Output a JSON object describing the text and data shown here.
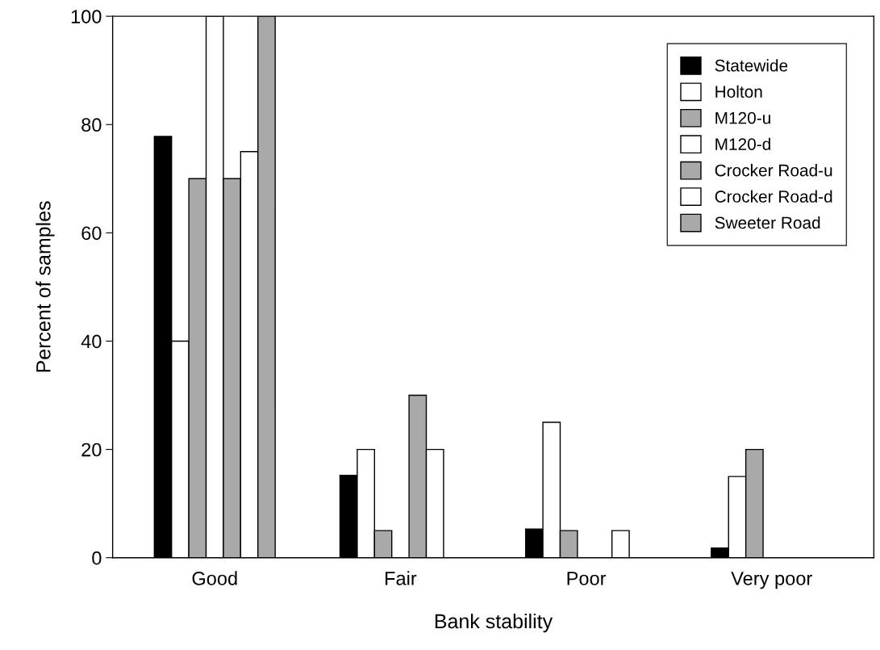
{
  "chart_data": {
    "type": "bar",
    "xlabel": "Bank stability",
    "ylabel": "Percent of samples",
    "categories": [
      "Good",
      "Fair",
      "Poor",
      "Very poor"
    ],
    "series": [
      {
        "name": "Statewide",
        "color": "#000000",
        "values": [
          77.8,
          15.2,
          5.3,
          1.8
        ]
      },
      {
        "name": "Holton",
        "color": "#ffffff",
        "values": [
          40,
          20,
          25,
          15
        ]
      },
      {
        "name": "M120-u",
        "color": "#a9a9a9",
        "values": [
          70,
          5,
          5,
          20
        ]
      },
      {
        "name": "M120-d",
        "color": "#ffffff",
        "values": [
          100,
          0,
          0,
          0
        ]
      },
      {
        "name": "Crocker Road-u",
        "color": "#a9a9a9",
        "values": [
          70,
          30,
          0,
          0
        ]
      },
      {
        "name": "Crocker Road-d",
        "color": "#ffffff",
        "values": [
          75,
          20,
          5,
          0
        ]
      },
      {
        "name": "Sweeter Road",
        "color": "#a9a9a9",
        "values": [
          100,
          0,
          0,
          0
        ]
      }
    ],
    "ylim": [
      0,
      100
    ],
    "yticks": [
      0,
      20,
      40,
      60,
      80,
      100
    ],
    "grid": false,
    "legend": "top right"
  }
}
